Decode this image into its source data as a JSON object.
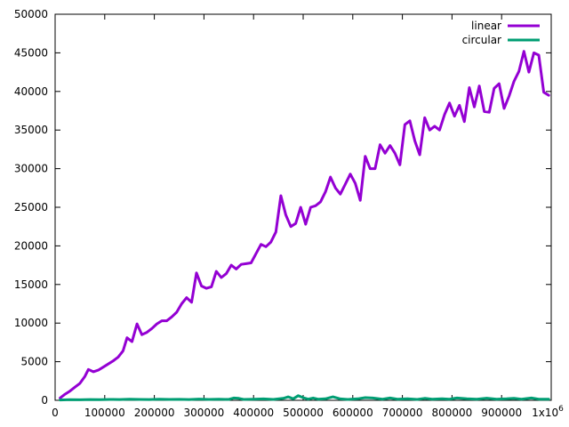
{
  "chart_data": {
    "type": "line",
    "title": "",
    "xlabel": "",
    "ylabel": "",
    "xlim": [
      0,
      1000000
    ],
    "ylim": [
      0,
      50000
    ],
    "x_ticks": [
      {
        "value": 0,
        "label": "0"
      },
      {
        "value": 100000,
        "label": "100000"
      },
      {
        "value": 200000,
        "label": "200000"
      },
      {
        "value": 300000,
        "label": "300000"
      },
      {
        "value": 400000,
        "label": "400000"
      },
      {
        "value": 500000,
        "label": "500000"
      },
      {
        "value": 600000,
        "label": "600000"
      },
      {
        "value": 700000,
        "label": "700000"
      },
      {
        "value": 800000,
        "label": "800000"
      },
      {
        "value": 900000,
        "label": "900000"
      },
      {
        "value": 1000000,
        "label": "1x10",
        "sup": "6"
      }
    ],
    "y_ticks": [
      {
        "value": 0,
        "label": "0"
      },
      {
        "value": 5000,
        "label": "5000"
      },
      {
        "value": 10000,
        "label": "10000"
      },
      {
        "value": 15000,
        "label": "15000"
      },
      {
        "value": 20000,
        "label": "20000"
      },
      {
        "value": 25000,
        "label": "25000"
      },
      {
        "value": 30000,
        "label": "30000"
      },
      {
        "value": 35000,
        "label": "35000"
      },
      {
        "value": 40000,
        "label": "40000"
      },
      {
        "value": 45000,
        "label": "45000"
      },
      {
        "value": 50000,
        "label": "50000"
      }
    ],
    "grid": false,
    "legend_position": "top-right",
    "series": [
      {
        "name": "linear",
        "color": "#9400d3",
        "points": [
          [
            10000,
            300
          ],
          [
            20000,
            800
          ],
          [
            30000,
            1200
          ],
          [
            40000,
            1700
          ],
          [
            50000,
            2200
          ],
          [
            60000,
            3100
          ],
          [
            67000,
            4000
          ],
          [
            77000,
            3700
          ],
          [
            87000,
            3900
          ],
          [
            97000,
            4300
          ],
          [
            107000,
            4700
          ],
          [
            117000,
            5100
          ],
          [
            127000,
            5600
          ],
          [
            137000,
            6400
          ],
          [
            145000,
            8100
          ],
          [
            155000,
            7600
          ],
          [
            165000,
            9900
          ],
          [
            175000,
            8500
          ],
          [
            185000,
            8800
          ],
          [
            195000,
            9300
          ],
          [
            205000,
            9900
          ],
          [
            215000,
            10300
          ],
          [
            225000,
            10300
          ],
          [
            235000,
            10800
          ],
          [
            245000,
            11400
          ],
          [
            255000,
            12500
          ],
          [
            265000,
            13300
          ],
          [
            275000,
            12700
          ],
          [
            285000,
            16500
          ],
          [
            295000,
            14800
          ],
          [
            305000,
            14500
          ],
          [
            315000,
            14700
          ],
          [
            325000,
            16700
          ],
          [
            335000,
            15900
          ],
          [
            345000,
            16400
          ],
          [
            355000,
            17500
          ],
          [
            365000,
            17000
          ],
          [
            375000,
            17600
          ],
          [
            385000,
            17700
          ],
          [
            395000,
            17800
          ],
          [
            405000,
            19000
          ],
          [
            415000,
            20200
          ],
          [
            425000,
            19900
          ],
          [
            435000,
            20500
          ],
          [
            445000,
            21800
          ],
          [
            455000,
            26500
          ],
          [
            465000,
            24000
          ],
          [
            475000,
            22500
          ],
          [
            485000,
            22900
          ],
          [
            495000,
            25000
          ],
          [
            505000,
            22800
          ],
          [
            515000,
            25000
          ],
          [
            525000,
            25200
          ],
          [
            535000,
            25700
          ],
          [
            545000,
            27000
          ],
          [
            555000,
            28900
          ],
          [
            565000,
            27500
          ],
          [
            575000,
            26700
          ],
          [
            585000,
            28000
          ],
          [
            595000,
            29300
          ],
          [
            605000,
            28100
          ],
          [
            615000,
            25900
          ],
          [
            625000,
            31600
          ],
          [
            635000,
            30000
          ],
          [
            645000,
            30000
          ],
          [
            655000,
            33100
          ],
          [
            665000,
            32000
          ],
          [
            675000,
            33000
          ],
          [
            685000,
            32000
          ],
          [
            695000,
            30500
          ],
          [
            705000,
            35700
          ],
          [
            715000,
            36200
          ],
          [
            725000,
            33600
          ],
          [
            735000,
            31800
          ],
          [
            745000,
            36600
          ],
          [
            755000,
            35000
          ],
          [
            765000,
            35500
          ],
          [
            775000,
            35000
          ],
          [
            785000,
            37000
          ],
          [
            795000,
            38500
          ],
          [
            805000,
            36800
          ],
          [
            815000,
            38200
          ],
          [
            825000,
            36100
          ],
          [
            835000,
            40500
          ],
          [
            845000,
            38000
          ],
          [
            855000,
            40700
          ],
          [
            865000,
            37400
          ],
          [
            875000,
            37300
          ],
          [
            885000,
            40400
          ],
          [
            895000,
            41000
          ],
          [
            905000,
            37800
          ],
          [
            915000,
            39400
          ],
          [
            925000,
            41300
          ],
          [
            935000,
            42600
          ],
          [
            945000,
            45200
          ],
          [
            955000,
            42500
          ],
          [
            965000,
            45000
          ],
          [
            975000,
            44700
          ],
          [
            985000,
            39900
          ],
          [
            995000,
            39500
          ]
        ]
      },
      {
        "name": "circular",
        "color": "#009e73",
        "points": [
          [
            10000,
            50
          ],
          [
            30000,
            80
          ],
          [
            50000,
            70
          ],
          [
            70000,
            100
          ],
          [
            90000,
            90
          ],
          [
            110000,
            120
          ],
          [
            130000,
            100
          ],
          [
            150000,
            140
          ],
          [
            170000,
            110
          ],
          [
            190000,
            100
          ],
          [
            210000,
            150
          ],
          [
            230000,
            110
          ],
          [
            250000,
            130
          ],
          [
            270000,
            100
          ],
          [
            290000,
            160
          ],
          [
            310000,
            120
          ],
          [
            330000,
            150
          ],
          [
            350000,
            120
          ],
          [
            360000,
            300
          ],
          [
            370000,
            250
          ],
          [
            380000,
            120
          ],
          [
            400000,
            150
          ],
          [
            420000,
            180
          ],
          [
            440000,
            120
          ],
          [
            460000,
            250
          ],
          [
            470000,
            450
          ],
          [
            480000,
            200
          ],
          [
            490000,
            600
          ],
          [
            500000,
            350
          ],
          [
            510000,
            150
          ],
          [
            520000,
            300
          ],
          [
            530000,
            150
          ],
          [
            545000,
            200
          ],
          [
            560000,
            450
          ],
          [
            575000,
            180
          ],
          [
            590000,
            120
          ],
          [
            610000,
            200
          ],
          [
            625000,
            350
          ],
          [
            640000,
            300
          ],
          [
            660000,
            150
          ],
          [
            675000,
            300
          ],
          [
            690000,
            150
          ],
          [
            710000,
            200
          ],
          [
            730000,
            120
          ],
          [
            745000,
            250
          ],
          [
            760000,
            150
          ],
          [
            780000,
            200
          ],
          [
            795000,
            150
          ],
          [
            810000,
            300
          ],
          [
            830000,
            200
          ],
          [
            850000,
            150
          ],
          [
            870000,
            280
          ],
          [
            890000,
            150
          ],
          [
            910000,
            200
          ],
          [
            925000,
            250
          ],
          [
            940000,
            150
          ],
          [
            960000,
            300
          ],
          [
            975000,
            150
          ],
          [
            995000,
            150
          ]
        ]
      }
    ]
  }
}
